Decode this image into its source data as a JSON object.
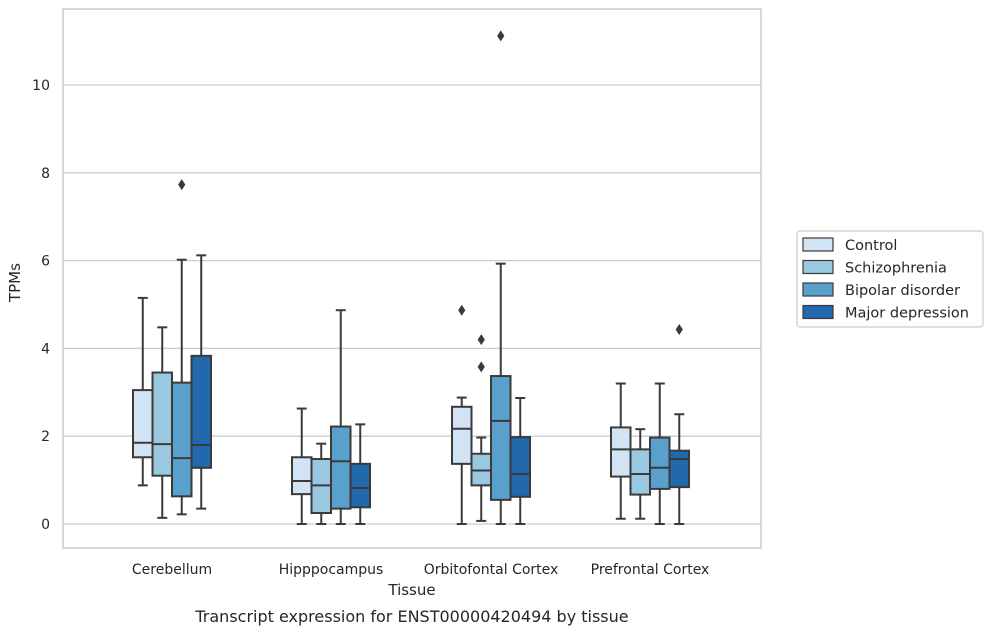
{
  "chart_data": {
    "type": "box",
    "title": "",
    "xlabel": "Tissue",
    "ylabel": "TPMs",
    "caption": "Transcript expression for ENST00000420494 by tissue",
    "categories": [
      "Cerebellum",
      "Hipppocampus",
      "Orbitofontal Cortex",
      "Prefrontal Cortex"
    ],
    "y_ticks": [
      0,
      2,
      4,
      6,
      8,
      10
    ],
    "ylim": [
      -0.55,
      11.75
    ],
    "grid": "horizontal",
    "legend_position": "right",
    "series": [
      {
        "name": "Control",
        "color": "#d2e3f3",
        "boxes": [
          {
            "min": 0.88,
            "q1": 1.52,
            "median": 1.85,
            "q3": 3.05,
            "max": 5.15,
            "outliers": []
          },
          {
            "min": 0.0,
            "q1": 0.68,
            "median": 0.98,
            "q3": 1.52,
            "max": 2.63,
            "outliers": []
          },
          {
            "min": 0.0,
            "q1": 1.37,
            "median": 2.17,
            "q3": 2.67,
            "max": 2.88,
            "outliers": [
              4.87
            ]
          },
          {
            "min": 0.12,
            "q1": 1.08,
            "median": 1.7,
            "q3": 2.2,
            "max": 3.2,
            "outliers": []
          }
        ]
      },
      {
        "name": "Schizophrenia",
        "color": "#9ac8e0",
        "boxes": [
          {
            "min": 0.14,
            "q1": 1.1,
            "median": 1.82,
            "q3": 3.45,
            "max": 4.48,
            "outliers": []
          },
          {
            "min": 0.0,
            "q1": 0.25,
            "median": 0.88,
            "q3": 1.48,
            "max": 1.83,
            "outliers": []
          },
          {
            "min": 0.07,
            "q1": 0.88,
            "median": 1.22,
            "q3": 1.6,
            "max": 1.97,
            "outliers": [
              3.58,
              4.2
            ]
          },
          {
            "min": 0.12,
            "q1": 0.67,
            "median": 1.14,
            "q3": 1.7,
            "max": 2.16,
            "outliers": []
          }
        ]
      },
      {
        "name": "Bipolar disorder",
        "color": "#5aa0cd",
        "boxes": [
          {
            "min": 0.22,
            "q1": 0.63,
            "median": 1.5,
            "q3": 3.22,
            "max": 6.02,
            "outliers": [
              7.73
            ]
          },
          {
            "min": 0.0,
            "q1": 0.35,
            "median": 1.43,
            "q3": 2.22,
            "max": 4.87,
            "outliers": []
          },
          {
            "min": 0.0,
            "q1": 0.55,
            "median": 2.35,
            "q3": 3.37,
            "max": 5.93,
            "outliers": [
              11.12
            ]
          },
          {
            "min": 0.0,
            "q1": 0.8,
            "median": 1.28,
            "q3": 1.97,
            "max": 3.2,
            "outliers": []
          }
        ]
      },
      {
        "name": "Major depression",
        "color": "#2268ad",
        "boxes": [
          {
            "min": 0.35,
            "q1": 1.28,
            "median": 1.8,
            "q3": 3.83,
            "max": 6.12,
            "outliers": []
          },
          {
            "min": 0.0,
            "q1": 0.38,
            "median": 0.82,
            "q3": 1.37,
            "max": 2.27,
            "outliers": []
          },
          {
            "min": 0.0,
            "q1": 0.62,
            "median": 1.14,
            "q3": 1.98,
            "max": 2.87,
            "outliers": []
          },
          {
            "min": 0.0,
            "q1": 0.84,
            "median": 1.48,
            "q3": 1.67,
            "max": 2.5,
            "outliers": [
              4.43
            ]
          }
        ]
      }
    ]
  }
}
